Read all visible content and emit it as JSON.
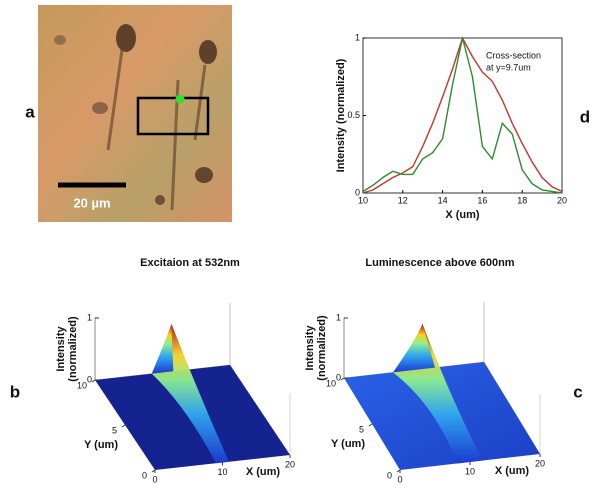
{
  "panel_labels": [
    "a",
    "b",
    "c",
    "d"
  ],
  "image": {
    "scale_bar": "20 µm"
  },
  "chart_data": {
    "type": "line",
    "xlabel": "X (um)",
    "ylabel": "Intensity (normalized)",
    "annotation": [
      "Cross-section",
      "at y=9.7um"
    ],
    "x": [
      10,
      10.5,
      11,
      11.5,
      12,
      12.5,
      13,
      13.5,
      14,
      14.5,
      15,
      15.5,
      16,
      16.5,
      17,
      17.5,
      18,
      18.5,
      19,
      19.5,
      20
    ],
    "series": [
      {
        "color": "#c8322d",
        "values": [
          0,
          0.02,
          0.06,
          0.1,
          0.13,
          0.17,
          0.3,
          0.45,
          0.62,
          0.8,
          1.0,
          0.88,
          0.78,
          0.72,
          0.6,
          0.45,
          0.32,
          0.2,
          0.1,
          0.04,
          0.01
        ]
      },
      {
        "color": "#2e8b2e",
        "values": [
          0.01,
          0.05,
          0.1,
          0.14,
          0.12,
          0.12,
          0.22,
          0.26,
          0.35,
          0.7,
          1.0,
          0.75,
          0.3,
          0.22,
          0.45,
          0.38,
          0.15,
          0.06,
          0.02,
          0.01,
          0
        ]
      }
    ],
    "xlim": [
      10,
      20
    ],
    "xticks": [
      10,
      12,
      14,
      16,
      18,
      20
    ],
    "ylim": [
      0,
      1
    ],
    "yticks": [
      0,
      0.5,
      1
    ]
  },
  "surface_plots": [
    {
      "title": "Excitaion at 532nm",
      "zlabel": [
        "Intensity",
        "(normalized)"
      ],
      "ylabel": "Y (um)",
      "xlabel": "X (um)",
      "zlim": [
        0,
        1
      ],
      "zticks": [
        0,
        1
      ],
      "ylim": [
        0,
        10
      ],
      "yticks": [
        0,
        5,
        10
      ],
      "xlim": [
        0,
        20
      ],
      "xticks": [
        0,
        10,
        20
      ]
    },
    {
      "title": "Luminescence above 600nm",
      "zlabel": [
        "Intensity",
        "(normalized)"
      ],
      "ylabel": "Y (um)",
      "xlabel": "X (um)",
      "zlim": [
        0,
        1
      ],
      "zticks": [
        0,
        1
      ],
      "ylim": [
        0,
        10
      ],
      "yticks": [
        0,
        5,
        10
      ],
      "xlim": [
        0,
        20
      ],
      "xticks": [
        0,
        10,
        20
      ]
    }
  ]
}
